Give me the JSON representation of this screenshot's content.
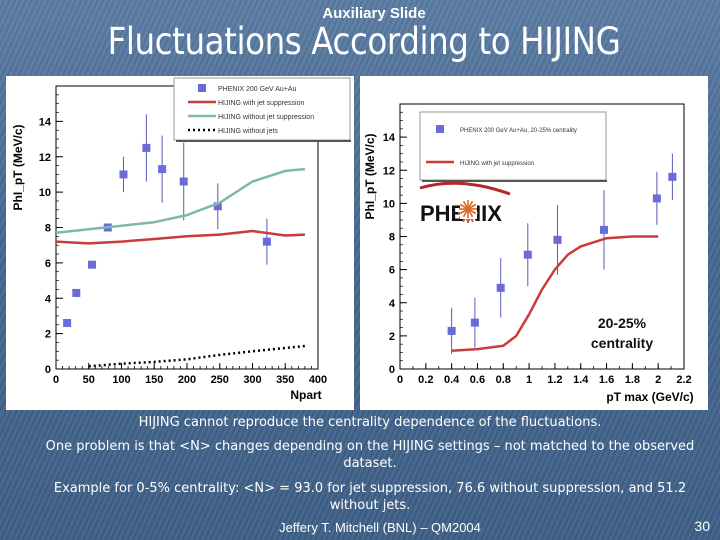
{
  "slide": {
    "supertitle": "Auxiliary Slide",
    "title": "Fluctuations According to HIJING",
    "captions": [
      "HIJING cannot reproduce the centrality dependence of the fluctuations.",
      "One problem is that <N> changes depending on the HIJING settings – not matched to the observed dataset.",
      "Example for 0-5% centrality: <N> = 93.0 for jet suppression, 76.6 without suppression, and 51.2 without jets."
    ],
    "footer": "Jeffery T. Mitchell (BNL) – QM2004",
    "page": "30"
  },
  "chart_data": [
    {
      "type": "scatter",
      "xlabel": "Npart",
      "ylabel": "PhI_pT (MeV/c)",
      "xlim": [
        0,
        400
      ],
      "ylim": [
        0,
        16
      ],
      "xticks": [
        "0",
        "50",
        "100",
        "150",
        "200",
        "250",
        "300",
        "350",
        "400"
      ],
      "yticks": [
        "0",
        "2",
        "4",
        "6",
        "8",
        "10",
        "12",
        "14"
      ],
      "legend_position": "top-right",
      "series": [
        {
          "name": "PHENIX 200 GeV Au+Au",
          "kind": "points",
          "color": "#6a6ad8",
          "x": [
            17,
            31,
            55,
            79,
            103,
            138,
            162,
            195,
            247,
            322
          ],
          "y": [
            2.6,
            4.3,
            5.9,
            8.0,
            11.0,
            12.5,
            11.3,
            10.6,
            9.2,
            7.2
          ],
          "err": [
            0,
            0,
            0,
            0,
            1.0,
            1.9,
            1.9,
            2.2,
            1.3,
            1.3
          ]
        },
        {
          "name": "HIJING with jet suppression",
          "kind": "line",
          "color": "#c83c3c",
          "x": [
            0,
            50,
            100,
            150,
            200,
            250,
            300,
            350,
            380
          ],
          "y": [
            7.2,
            7.1,
            7.2,
            7.35,
            7.5,
            7.6,
            7.8,
            7.55,
            7.6
          ]
        },
        {
          "name": "HIJING without jet suppression",
          "kind": "line",
          "color": "#7fb8a8",
          "x": [
            0,
            50,
            100,
            150,
            200,
            250,
            300,
            350,
            380
          ],
          "y": [
            7.7,
            7.9,
            8.1,
            8.3,
            8.7,
            9.4,
            10.6,
            11.2,
            11.3
          ]
        },
        {
          "name": "HIJING without jets",
          "kind": "dotted",
          "color": "#000000",
          "x": [
            50,
            100,
            150,
            200,
            250,
            300,
            380
          ],
          "y": [
            0.15,
            0.3,
            0.4,
            0.55,
            0.8,
            1.0,
            1.3
          ]
        }
      ]
    },
    {
      "type": "scatter",
      "xlabel": "pT max (GeV/c)",
      "ylabel": "PhI_pT (MeV/c)",
      "annotation": "20-25% centrality",
      "logo": "PHENIX",
      "xlim": [
        0,
        2.2
      ],
      "ylim": [
        0,
        16
      ],
      "xticks": [
        "0",
        "0.2",
        "0.4",
        "0.6",
        "0.8",
        "1",
        "1.2",
        "1.4",
        "1.6",
        "1.8",
        "2",
        "2.2"
      ],
      "yticks": [
        "0",
        "2",
        "4",
        "6",
        "8",
        "10",
        "12",
        "14"
      ],
      "legend_position": "top-right",
      "series": [
        {
          "name": "PHENIX 200 GeV Au+Au, 20-25% centrality",
          "kind": "points",
          "color": "#6a6ad8",
          "x": [
            0.4,
            0.58,
            0.78,
            0.99,
            1.22,
            1.58,
            1.99,
            2.11
          ],
          "y": [
            2.3,
            2.8,
            4.9,
            6.9,
            7.8,
            8.4,
            10.3,
            11.6
          ],
          "err": [
            1.4,
            1.5,
            1.8,
            1.9,
            2.1,
            2.4,
            1.6,
            1.4
          ]
        },
        {
          "name": "HIJING with jet suppression",
          "kind": "line",
          "color": "#c83c3c",
          "x": [
            0.4,
            0.6,
            0.8,
            0.9,
            1.0,
            1.1,
            1.2,
            1.3,
            1.4,
            1.6,
            1.8,
            2.0
          ],
          "y": [
            1.1,
            1.2,
            1.4,
            2.0,
            3.3,
            4.8,
            6.0,
            6.9,
            7.4,
            7.9,
            8.0,
            8.0
          ]
        }
      ]
    }
  ]
}
